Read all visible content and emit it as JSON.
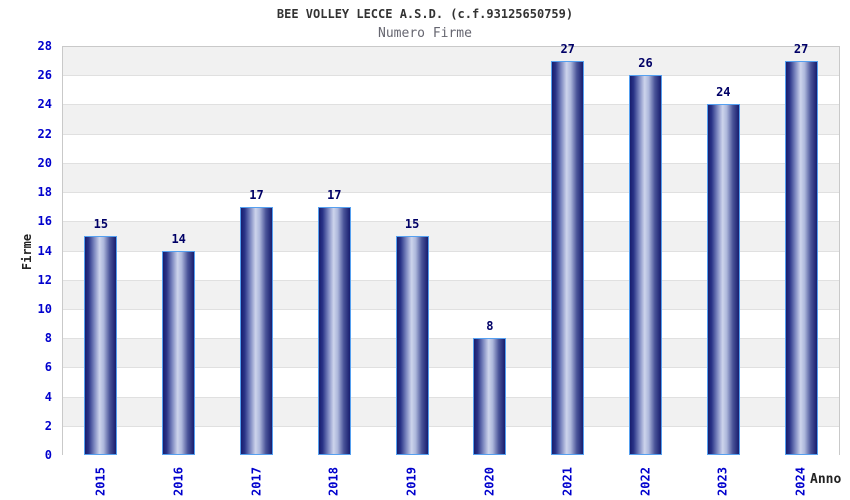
{
  "header": {
    "title": "BEE VOLLEY LECCE A.S.D. (c.f.93125650759)",
    "subtitle": "Numero Firme"
  },
  "chart_data": {
    "type": "bar",
    "title": "BEE VOLLEY LECCE A.S.D. (c.f.93125650759)",
    "subtitle": "Numero Firme",
    "categories": [
      "2015",
      "2016",
      "2017",
      "2018",
      "2019",
      "2020",
      "2021",
      "2022",
      "2023",
      "2024"
    ],
    "values": [
      15,
      14,
      17,
      17,
      15,
      8,
      27,
      26,
      24,
      27
    ],
    "xlabel": "Anno",
    "ylabel": "Firme",
    "ylim": [
      0,
      28
    ],
    "ytick_step": 2,
    "y_tick_labels": [
      "0",
      "2",
      "4",
      "6",
      "8",
      "10",
      "12",
      "14",
      "16",
      "18",
      "20",
      "22",
      "24",
      "26",
      "28"
    ],
    "grid": "horizontal-bands-alternating",
    "legend_position": "none",
    "bar_value_labels": true
  },
  "colors": {
    "tick_label": "#0000cd",
    "value_label": "#000066",
    "title": "#333333",
    "subtitle": "#666670",
    "axis_title": "#222222",
    "bar_border": "#55a0f0",
    "bar_dark": "#181d6e",
    "bar_mid": "#7d88c0",
    "bar_light": "#cdd4ec",
    "band_gray": "#f1f1f1",
    "band_white": "#ffffff",
    "grid_line": "#e0e0e0",
    "plot_border": "#c9c9c9"
  }
}
